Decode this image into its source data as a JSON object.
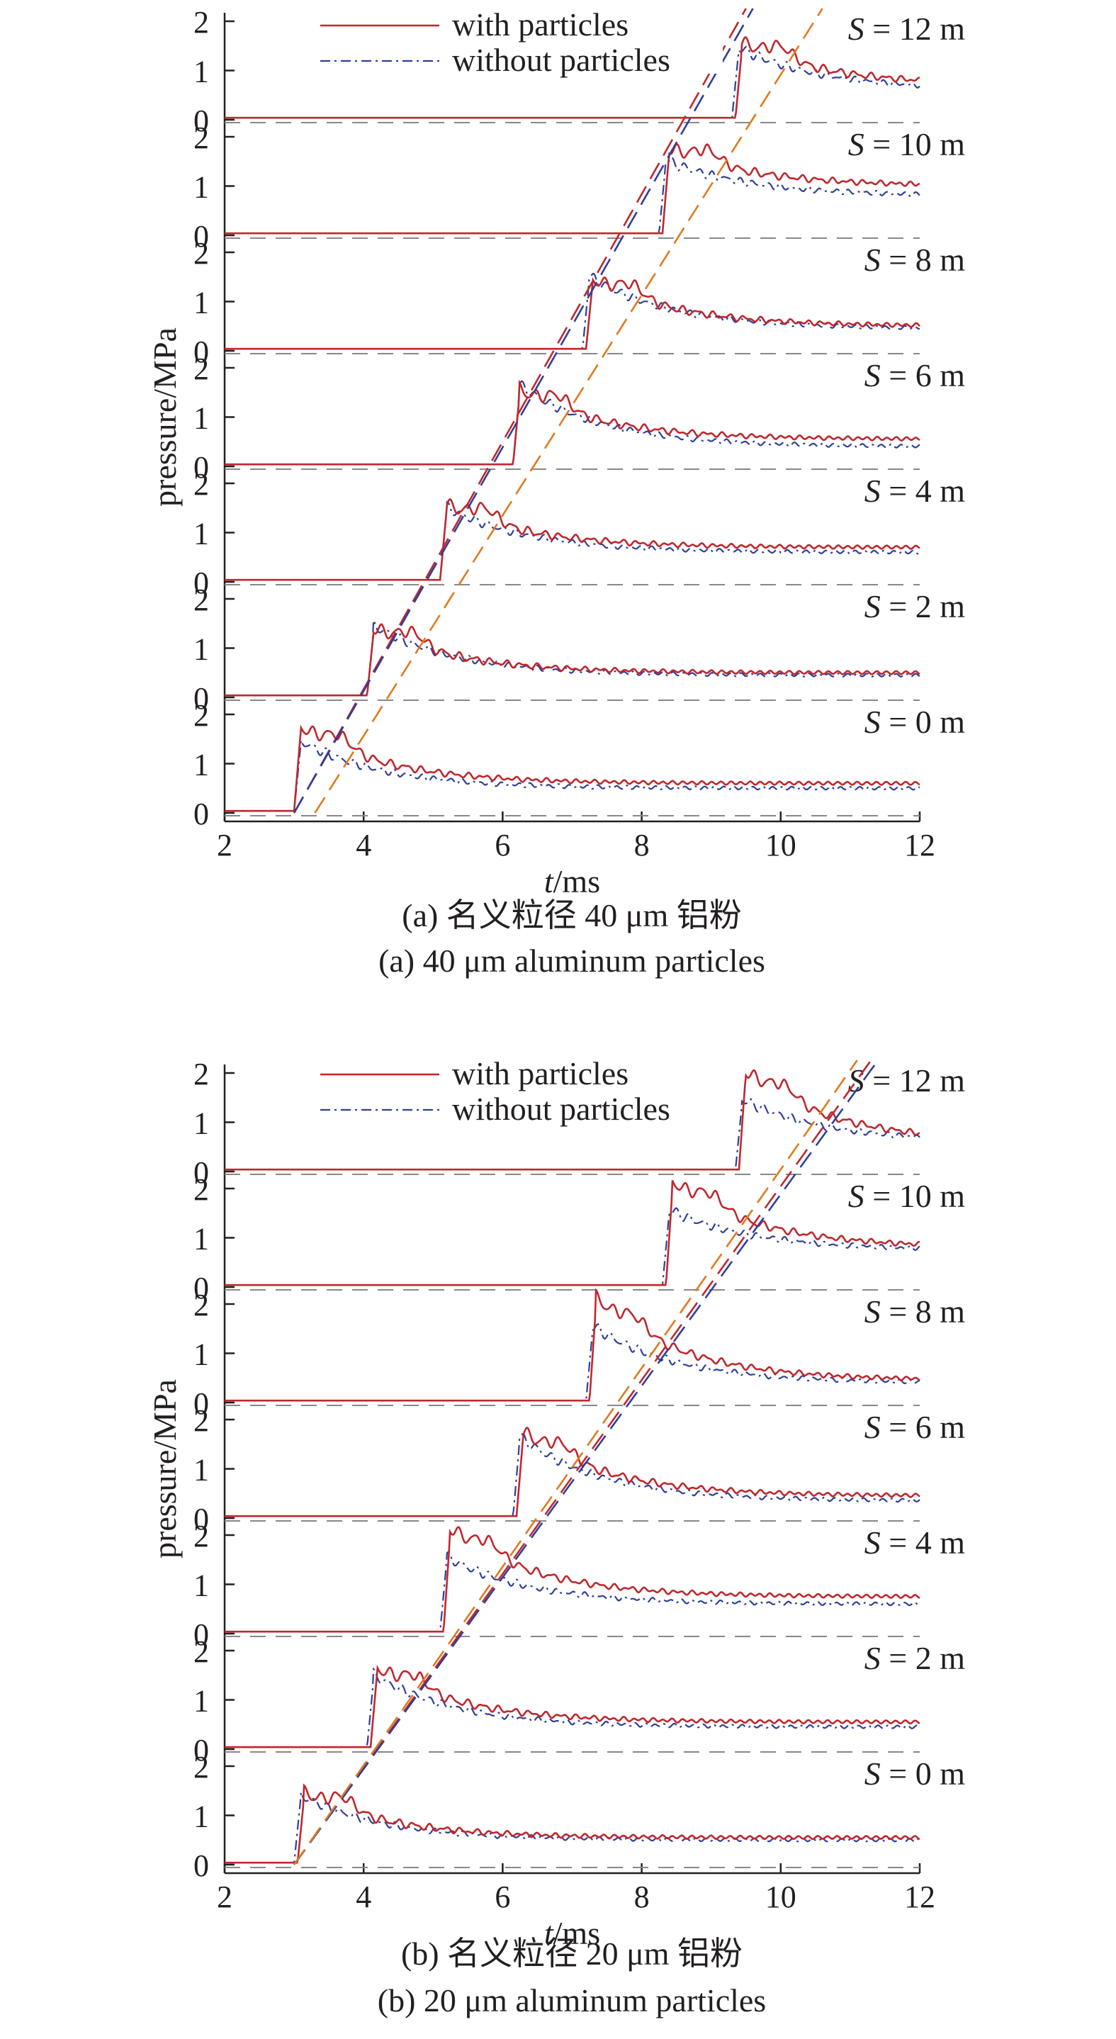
{
  "figure": {
    "captions": [
      {
        "zh": "(a) 名义粒径 40 μm 铝粉",
        "en": "(a) 40 μm aluminum particles"
      },
      {
        "zh": "(b) 名义粒径 20 μm 铝粉",
        "en": "(b) 20 μm aluminum particles"
      }
    ]
  },
  "colors": {
    "with_particles": "#c0272d",
    "without_particles": "#2e3f99",
    "trend_orange": "#e07a1e",
    "baseline": "#888888",
    "axis": "#231f20"
  },
  "chart_data": [
    {
      "type": "line",
      "caption": "(a) 40 μm aluminum particles",
      "xlabel_italic": "t",
      "xlabel_rest": "/ms",
      "ylabel": "pressure/MPa",
      "xlim": [
        2,
        12
      ],
      "ylim": [
        0,
        2
      ],
      "xticks": [
        "2",
        "4",
        "6",
        "8",
        "10",
        "12"
      ],
      "yticks": [
        "0",
        "1",
        "2"
      ],
      "legend": [
        {
          "name": "with particles",
          "style": "solid"
        },
        {
          "name": "without particles",
          "style": "dash-dot"
        }
      ],
      "panels": [
        {
          "s_label": "S = 12 m",
          "s_var": "S",
          "s_rest": " = 12 m",
          "arrival_with": 9.4,
          "arrival_without": 9.35,
          "peak_with": 1.6,
          "peak_without": 1.5,
          "final_with": 0.7,
          "final_without": 0.6
        },
        {
          "s_label": "S = 10 m",
          "s_var": "S",
          "s_rest": " = 10 m",
          "arrival_with": 8.35,
          "arrival_without": 8.3,
          "peak_with": 1.8,
          "peak_without": 1.55,
          "final_with": 1.0,
          "final_without": 0.8
        },
        {
          "s_label": "S = 8 m",
          "s_var": "S",
          "s_rest": " = 8 m",
          "arrival_with": 7.25,
          "arrival_without": 7.2,
          "peak_with": 1.5,
          "peak_without": 1.55,
          "final_with": 0.5,
          "final_without": 0.45
        },
        {
          "s_label": "S = 6 m",
          "s_var": "S",
          "s_rest": " = 6 m",
          "arrival_with": 6.2,
          "arrival_without": 6.2,
          "peak_with": 1.6,
          "peak_without": 1.7,
          "final_with": 0.55,
          "final_without": 0.4
        },
        {
          "s_label": "S = 4 m",
          "s_var": "S",
          "s_rest": " = 4 m",
          "arrival_with": 5.15,
          "arrival_without": 5.15,
          "peak_with": 1.6,
          "peak_without": 1.55,
          "final_with": 0.7,
          "final_without": 0.6
        },
        {
          "s_label": "S = 2 m",
          "s_var": "S",
          "s_rest": " = 2 m",
          "arrival_with": 4.1,
          "arrival_without": 4.1,
          "peak_with": 1.45,
          "peak_without": 1.5,
          "final_with": 0.5,
          "final_without": 0.45
        },
        {
          "s_label": "S = 0 m",
          "s_var": "S",
          "s_rest": " = 0 m",
          "arrival_with": 3.05,
          "arrival_without": 3.05,
          "peak_with": 1.8,
          "peak_without": 1.5,
          "final_with": 0.6,
          "final_without": 0.5
        }
      ],
      "trend_lines": [
        {
          "color_key": "with_particles",
          "t_start": 3.0,
          "t_end": 9.5
        },
        {
          "color_key": "without_particles",
          "t_start": 3.0,
          "t_end": 9.6
        },
        {
          "color_key": "trend_orange",
          "t_start": 3.3,
          "t_end": 10.6
        }
      ]
    },
    {
      "type": "line",
      "caption": "(b) 20 μm aluminum particles",
      "xlabel_italic": "t",
      "xlabel_rest": "/ms",
      "ylabel": "pressure/MPa",
      "xlim": [
        2,
        12
      ],
      "ylim": [
        0,
        2
      ],
      "xticks": [
        "2",
        "4",
        "6",
        "8",
        "10",
        "12"
      ],
      "yticks": [
        "0",
        "1",
        "2"
      ],
      "legend": [
        {
          "name": "with particles",
          "style": "solid"
        },
        {
          "name": "without particles",
          "style": "dash-dot"
        }
      ],
      "panels": [
        {
          "s_label": "S = 12 m",
          "s_var": "S",
          "s_rest": " = 12 m",
          "arrival_with": 9.45,
          "arrival_without": 9.4,
          "peak_with": 2.1,
          "peak_without": 1.5,
          "final_with": 0.6,
          "final_without": 0.6
        },
        {
          "s_label": "S = 10 m",
          "s_var": "S",
          "s_rest": " = 10 m",
          "arrival_with": 8.4,
          "arrival_without": 8.35,
          "peak_with": 2.2,
          "peak_without": 1.6,
          "final_with": 0.8,
          "final_without": 0.75
        },
        {
          "s_label": "S = 8 m",
          "s_var": "S",
          "s_rest": " = 8 m",
          "arrival_with": 7.3,
          "arrival_without": 7.25,
          "peak_with": 2.2,
          "peak_without": 1.6,
          "final_with": 0.45,
          "final_without": 0.4
        },
        {
          "s_label": "S = 6 m",
          "s_var": "S",
          "s_rest": " = 6 m",
          "arrival_with": 6.25,
          "arrival_without": 6.2,
          "peak_with": 1.8,
          "peak_without": 1.7,
          "final_with": 0.45,
          "final_without": 0.35
        },
        {
          "s_label": "S = 4 m",
          "s_var": "S",
          "s_rest": " = 4 m",
          "arrival_with": 5.2,
          "arrival_without": 5.15,
          "peak_with": 2.2,
          "peak_without": 1.6,
          "final_with": 0.75,
          "final_without": 0.6
        },
        {
          "s_label": "S = 2 m",
          "s_var": "S",
          "s_rest": " = 2 m",
          "arrival_with": 4.15,
          "arrival_without": 4.1,
          "peak_with": 1.7,
          "peak_without": 1.55,
          "final_with": 0.55,
          "final_without": 0.45
        },
        {
          "s_label": "S = 0 m",
          "s_var": "S",
          "s_rest": " = 0 m",
          "arrival_with": 3.1,
          "arrival_without": 3.05,
          "peak_with": 1.5,
          "peak_without": 1.45,
          "final_with": 0.55,
          "final_without": 0.5
        }
      ],
      "trend_lines": [
        {
          "color_key": "with_particles",
          "t_start": 3.0,
          "t_end": 11.3
        },
        {
          "color_key": "without_particles",
          "t_start": 3.0,
          "t_end": 11.4
        },
        {
          "color_key": "trend_orange",
          "t_start": 3.0,
          "t_end": 11.1
        }
      ]
    }
  ]
}
